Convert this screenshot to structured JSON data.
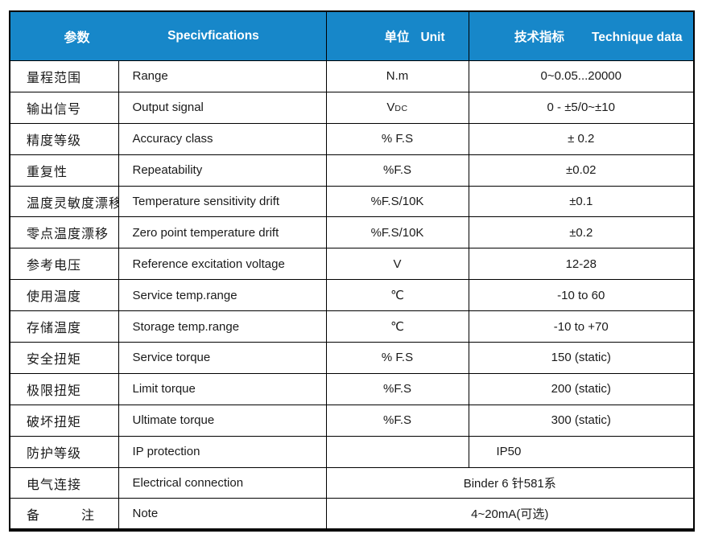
{
  "header": {
    "param": "参数",
    "spec": "Specivfications",
    "unit_cn": "单位",
    "unit_en": "Unit",
    "tech_cn": "技术指标",
    "tech_en": "Technique data"
  },
  "rows": [
    {
      "param": "量程范围",
      "spec": "Range",
      "unit": "N.m",
      "value": "0~0.05...20000"
    },
    {
      "param": "输出信号",
      "spec": "Output signal",
      "unit_main": "V",
      "unit_sub": "DC",
      "value": "0 - ±5/0~±10"
    },
    {
      "param": "精度等级",
      "spec": "Accuracy class",
      "unit": "% F.S",
      "value": "± 0.2"
    },
    {
      "param": "重复性",
      "spec": "Repeatability",
      "unit": "%F.S",
      "value": "±0.02"
    },
    {
      "param": "温度灵敏度漂移",
      "spec": "Temperature sensitivity drift",
      "unit": "%F.S/10K",
      "value": "±0.1"
    },
    {
      "param": "零点温度漂移",
      "spec": "Zero point temperature drift",
      "unit": "%F.S/10K",
      "value": "±0.2"
    },
    {
      "param": "参考电压",
      "spec": "Reference excitation voltage",
      "unit": "V",
      "value": "12-28"
    },
    {
      "param": "使用温度",
      "spec": "Service temp.range",
      "unit": "℃",
      "value": "-10 to 60"
    },
    {
      "param": "存储温度",
      "spec": "Storage temp.range",
      "unit": "℃",
      "value": "-10 to +70"
    },
    {
      "param": "安全扭矩",
      "spec": "Service torque",
      "unit": "% F.S",
      "value": "150 (static)"
    },
    {
      "param": "极限扭矩",
      "spec": "Limit torque",
      "unit": "%F.S",
      "value": "200 (static)"
    },
    {
      "param": "破坏扭矩",
      "spec": "Ultimate torque",
      "unit": "%F.S",
      "value": "300 (static)"
    },
    {
      "param": "防护等级",
      "spec": "IP protection",
      "unit": "",
      "value": "IP50",
      "value_align": "left"
    },
    {
      "param": "电气连接",
      "spec": "Electrical connection",
      "merged_value": "Binder 6 针581系"
    },
    {
      "param": "备　　　注",
      "spec": "Note",
      "merged_value": "4~20mA(可选)"
    }
  ],
  "colors": {
    "header_bg": "#1787C9",
    "header_text": "#FFFFFF",
    "body_text": "#1A1A1A",
    "border": "#000000"
  }
}
